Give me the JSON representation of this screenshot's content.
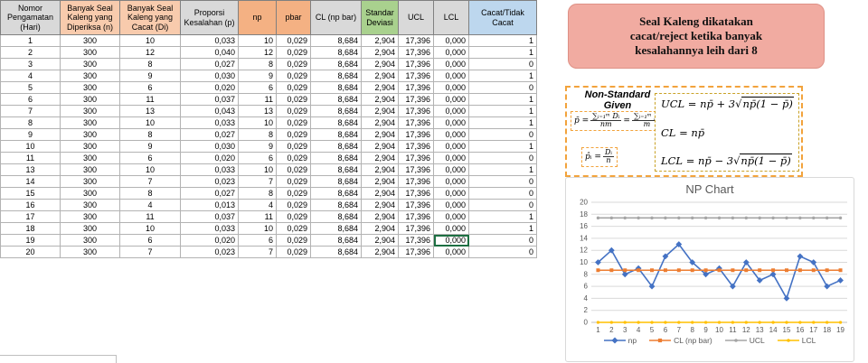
{
  "sheet": {
    "columns": [
      {
        "label": "Nomor Pengamatan (Hari)",
        "bg": "#d9d9d9"
      },
      {
        "label": "Banyak Seal Kaleng yang Diperiksa (n)",
        "bg": "#f8cbad"
      },
      {
        "label": "Banyak Seal Kaleng yang Cacat (Di)",
        "bg": "#f8cbad"
      },
      {
        "label": "Proporsi Kesalahan (p)",
        "bg": "#d9d9d9"
      },
      {
        "label": "np",
        "bg": "#f4b183"
      },
      {
        "label": "pbar",
        "bg": "#f4b183"
      },
      {
        "label": "CL (np bar)",
        "bg": "#d9d9d9"
      },
      {
        "label": "Standar Deviasi",
        "bg": "#a9d18e"
      },
      {
        "label": "UCL",
        "bg": "#d9d9d9"
      },
      {
        "label": "LCL",
        "bg": "#d9d9d9"
      },
      {
        "label": "Cacat/Tidak Cacat",
        "bg": "#bdd7ee"
      }
    ],
    "rows": [
      [
        "1",
        "300",
        "10",
        "0,033",
        "10",
        "0,029",
        "8,684",
        "2,904",
        "17,396",
        "0,000",
        "1"
      ],
      [
        "2",
        "300",
        "12",
        "0,040",
        "12",
        "0,029",
        "8,684",
        "2,904",
        "17,396",
        "0,000",
        "1"
      ],
      [
        "3",
        "300",
        "8",
        "0,027",
        "8",
        "0,029",
        "8,684",
        "2,904",
        "17,396",
        "0,000",
        "0"
      ],
      [
        "4",
        "300",
        "9",
        "0,030",
        "9",
        "0,029",
        "8,684",
        "2,904",
        "17,396",
        "0,000",
        "1"
      ],
      [
        "5",
        "300",
        "6",
        "0,020",
        "6",
        "0,029",
        "8,684",
        "2,904",
        "17,396",
        "0,000",
        "0"
      ],
      [
        "6",
        "300",
        "11",
        "0,037",
        "11",
        "0,029",
        "8,684",
        "2,904",
        "17,396",
        "0,000",
        "1"
      ],
      [
        "7",
        "300",
        "13",
        "0,043",
        "13",
        "0,029",
        "8,684",
        "2,904",
        "17,396",
        "0,000",
        "1"
      ],
      [
        "8",
        "300",
        "10",
        "0,033",
        "10",
        "0,029",
        "8,684",
        "2,904",
        "17,396",
        "0,000",
        "1"
      ],
      [
        "9",
        "300",
        "8",
        "0,027",
        "8",
        "0,029",
        "8,684",
        "2,904",
        "17,396",
        "0,000",
        "0"
      ],
      [
        "10",
        "300",
        "9",
        "0,030",
        "9",
        "0,029",
        "8,684",
        "2,904",
        "17,396",
        "0,000",
        "1"
      ],
      [
        "11",
        "300",
        "6",
        "0,020",
        "6",
        "0,029",
        "8,684",
        "2,904",
        "17,396",
        "0,000",
        "0"
      ],
      [
        "13",
        "300",
        "10",
        "0,033",
        "10",
        "0,029",
        "8,684",
        "2,904",
        "17,396",
        "0,000",
        "1"
      ],
      [
        "14",
        "300",
        "7",
        "0,023",
        "7",
        "0,029",
        "8,684",
        "2,904",
        "17,396",
        "0,000",
        "0"
      ],
      [
        "15",
        "300",
        "8",
        "0,027",
        "8",
        "0,029",
        "8,684",
        "2,904",
        "17,396",
        "0,000",
        "0"
      ],
      [
        "16",
        "300",
        "4",
        "0,013",
        "4",
        "0,029",
        "8,684",
        "2,904",
        "17,396",
        "0,000",
        "0"
      ],
      [
        "17",
        "300",
        "11",
        "0,037",
        "11",
        "0,029",
        "8,684",
        "2,904",
        "17,396",
        "0,000",
        "1"
      ],
      [
        "18",
        "300",
        "10",
        "0,033",
        "10",
        "0,029",
        "8,684",
        "2,904",
        "17,396",
        "0,000",
        "1"
      ],
      [
        "19",
        "300",
        "6",
        "0,020",
        "6",
        "0,029",
        "8,684",
        "2,904",
        "17,396",
        "0,000",
        "0"
      ],
      [
        "20",
        "300",
        "7",
        "0,023",
        "7",
        "0,029",
        "8,684",
        "2,904",
        "17,396",
        "0,000",
        "0"
      ]
    ],
    "selection": {
      "row": 17,
      "col": 9
    }
  },
  "callout": {
    "text": "Seal Kaleng dikatakan\ncacat/reject ketika banyak\nkesalahannya leih dari 8",
    "bg": "#f1aba1"
  },
  "formulas": {
    "title": "Non-Standard\nGiven",
    "radical": "√",
    "pbar_lhs": "p̄ =",
    "pbar_num1": "∑ᵢ₌₁ᵐ Dᵢ",
    "pbar_den1": "nm",
    "pbar_eq": "=",
    "pbar_num2": "∑ᵢ₌₁ᵐ p̂ᵢ",
    "pbar_den2": "m",
    "phat_lhs": "p̂ᵢ =",
    "phat_num": "Dᵢ",
    "phat_den": "n",
    "ucl_pre": "UCL = np̄ + 3",
    "ucl_sqrt": "np̄(1 − p̄)",
    "cl": "CL = np̄",
    "lcl_pre": "LCL = np̄ − 3",
    "lcl_sqrt": "np̄(1 − p̄)"
  },
  "chart_data": {
    "type": "line",
    "title": "NP Chart",
    "x": [
      1,
      2,
      3,
      4,
      5,
      6,
      7,
      8,
      9,
      10,
      11,
      12,
      13,
      14,
      15,
      16,
      17,
      18,
      19
    ],
    "series": [
      {
        "name": "np",
        "color": "#4472C4",
        "marker": "diamond",
        "values": [
          10,
          12,
          8,
          9,
          6,
          11,
          13,
          10,
          8,
          9,
          6,
          10,
          7,
          8,
          4,
          11,
          10,
          6,
          7
        ]
      },
      {
        "name": "CL (np bar)",
        "color": "#ED7D31",
        "marker": "square",
        "values": [
          8.684,
          8.684,
          8.684,
          8.684,
          8.684,
          8.684,
          8.684,
          8.684,
          8.684,
          8.684,
          8.684,
          8.684,
          8.684,
          8.684,
          8.684,
          8.684,
          8.684,
          8.684,
          8.684
        ]
      },
      {
        "name": "UCL",
        "color": "#A5A5A5",
        "marker": "dot",
        "values": [
          17.396,
          17.396,
          17.396,
          17.396,
          17.396,
          17.396,
          17.396,
          17.396,
          17.396,
          17.396,
          17.396,
          17.396,
          17.396,
          17.396,
          17.396,
          17.396,
          17.396,
          17.396,
          17.396
        ]
      },
      {
        "name": "LCL",
        "color": "#FFC000",
        "marker": "dot",
        "values": [
          0,
          0,
          0,
          0,
          0,
          0,
          0,
          0,
          0,
          0,
          0,
          0,
          0,
          0,
          0,
          0,
          0,
          0,
          0
        ]
      }
    ],
    "ylim": [
      0,
      20
    ],
    "ytick": 2,
    "grid": true,
    "legend_position": "bottom"
  }
}
